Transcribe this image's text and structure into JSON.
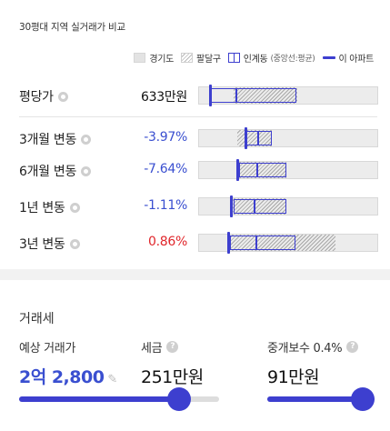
{
  "header": {
    "title": "30평대 지역 실거래가 비교"
  },
  "legend": {
    "gyeonggi": "경기도",
    "paldalgu": "팔달구",
    "ingye": "인계동",
    "ingye_note": "(중앙선:평균)",
    "apartment": "이 아파트"
  },
  "colors": {
    "accent": "#3d3fcf",
    "negative": "#3a4fd0",
    "positive": "#e0262b"
  },
  "rows": [
    {
      "label": "평당가",
      "value": "633만원",
      "tone": "black"
    },
    {
      "label": "3개월 변동",
      "value": "-3.97%",
      "tone": "neg"
    },
    {
      "label": "6개월 변동",
      "value": "-7.64%",
      "tone": "neg"
    },
    {
      "label": "1년 변동",
      "value": "-1.11%",
      "tone": "neg"
    },
    {
      "label": "3년 변동",
      "value": "0.86%",
      "tone": "pos"
    }
  ],
  "tax": {
    "section_title": "거래세",
    "price_label": "예상 거래가",
    "price_value": "2억 2,800",
    "tax_label": "세금",
    "tax_value": "251만원",
    "fee_label": "중개보수 0.4%",
    "fee_value": "91만원",
    "price_slider": 0.8,
    "fee_slider": 1.0
  }
}
